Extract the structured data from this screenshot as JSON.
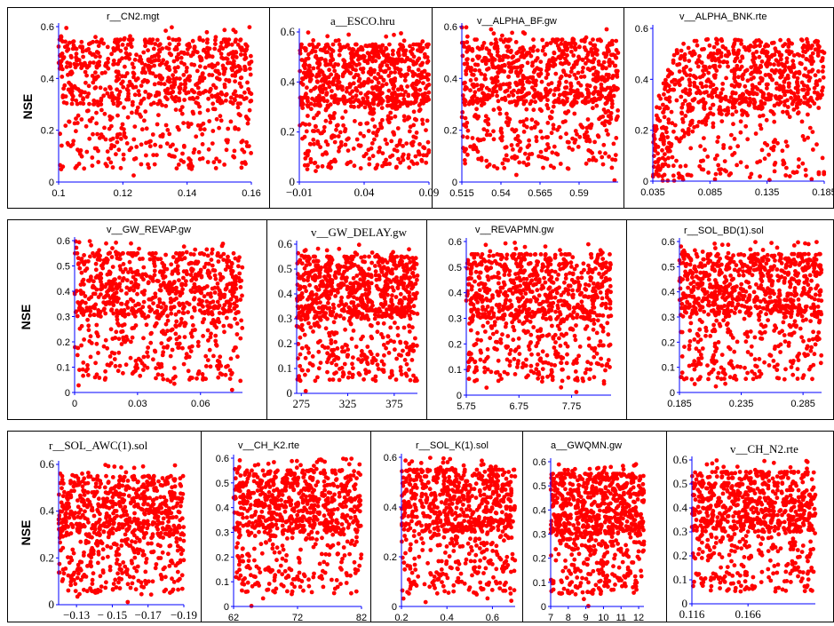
{
  "ylabel": "NSE",
  "point_color": "#ff0000",
  "axis_color": "#0000ff",
  "chart_data": [
    {
      "type": "scatter",
      "title": "r__CN2.mgt",
      "ylabel": "NSE",
      "xlim": [
        0.1,
        0.16
      ],
      "ylim": [
        0,
        0.6
      ],
      "xticks": [
        "0.1",
        "0.12",
        "0.14",
        "0.16"
      ],
      "xtick_values": [
        0.1,
        0.12,
        0.14,
        0.16
      ],
      "yticks": [
        "0",
        "0.2",
        "0.4",
        "0.6"
      ],
      "ytick_values": [
        0,
        0.2,
        0.4,
        0.6
      ],
      "pattern": "band",
      "density": 1.0
    },
    {
      "type": "scatter",
      "title": "a__ESCO.hru",
      "ylabel": "",
      "xlim": [
        -0.01,
        0.09
      ],
      "ylim": [
        0,
        0.6
      ],
      "xticks": [
        "−0.01",
        "0.04",
        "0.09"
      ],
      "xtick_values": [
        -0.01,
        0.04,
        0.09
      ],
      "yticks": [
        "0",
        "0.2",
        "0.4",
        "0.6"
      ],
      "ytick_values": [
        0,
        0.2,
        0.4,
        0.6
      ],
      "pattern": "band",
      "density": 1.0
    },
    {
      "type": "scatter",
      "title": "v__ALPHA_BF.gw",
      "ylabel": "",
      "xlim": [
        0.515,
        0.615
      ],
      "ylim": [
        0,
        0.6
      ],
      "xticks": [
        "0.515",
        "0.54",
        "0.565",
        "0.59"
      ],
      "xtick_values": [
        0.515,
        0.54,
        0.565,
        0.59
      ],
      "yticks": [
        "0",
        "0.2",
        "0.4",
        "0.6"
      ],
      "ytick_values": [
        0,
        0.2,
        0.4,
        0.6
      ],
      "pattern": "band",
      "density": 1.0
    },
    {
      "type": "scatter",
      "title": "v__ALPHA_BNK.rte",
      "ylabel": "",
      "xlim": [
        0.035,
        0.185
      ],
      "ylim": [
        0,
        0.6
      ],
      "xticks": [
        "0.035",
        "0.085",
        "0.135",
        "0.185"
      ],
      "xtick_values": [
        0.035,
        0.085,
        0.135,
        0.185
      ],
      "yticks": [
        "0",
        "0.2",
        "0.4",
        "0.6"
      ],
      "ytick_values": [
        0,
        0.2,
        0.4,
        0.6
      ],
      "pattern": "curve",
      "density": 1.0
    },
    {
      "type": "scatter",
      "title": "v__GW_REVAP.gw",
      "ylabel": "NSE",
      "xlim": [
        0,
        0.08
      ],
      "ylim": [
        0,
        0.6
      ],
      "xticks": [
        "0",
        "0.03",
        "0.06"
      ],
      "xtick_values": [
        0,
        0.03,
        0.06
      ],
      "yticks": [
        "0",
        "0.1",
        "0.2",
        "0.3",
        "0.4",
        "0.5",
        "0.6"
      ],
      "ytick_values": [
        0,
        0.1,
        0.2,
        0.3,
        0.4,
        0.5,
        0.6
      ],
      "pattern": "band",
      "density": 1.0
    },
    {
      "type": "scatter",
      "title": "v__GW_DELAY.gw",
      "ylabel": "",
      "xlim": [
        270,
        400
      ],
      "ylim": [
        0,
        0.6
      ],
      "xticks": [
        "275",
        "325",
        "375"
      ],
      "xtick_values": [
        275,
        325,
        375
      ],
      "yticks": [
        "0",
        "0.1",
        "0.2",
        "0.3",
        "0.4",
        "0.5",
        "0.6"
      ],
      "ytick_values": [
        0,
        0.1,
        0.2,
        0.3,
        0.4,
        0.5,
        0.6
      ],
      "pattern": "band",
      "density": 1.0
    },
    {
      "type": "scatter",
      "title": "v__REVAPMN.gw",
      "ylabel": "",
      "xlim": [
        5.75,
        8.5
      ],
      "ylim": [
        0,
        0.6
      ],
      "xticks": [
        "5.75",
        "6.75",
        "7.75"
      ],
      "xtick_values": [
        5.75,
        6.75,
        7.75
      ],
      "yticks": [
        "0",
        "0.1",
        "0.2",
        "0.3",
        "0.4",
        "0.5",
        "0.6"
      ],
      "ytick_values": [
        0,
        0.1,
        0.2,
        0.3,
        0.4,
        0.5,
        0.6
      ],
      "pattern": "band",
      "density": 1.0
    },
    {
      "type": "scatter",
      "title": "r__SOL_BD(1).sol",
      "ylabel": "",
      "xlim": [
        0.185,
        0.3
      ],
      "ylim": [
        0,
        0.6
      ],
      "xticks": [
        "0.185",
        "0.235",
        "0.285"
      ],
      "xtick_values": [
        0.185,
        0.235,
        0.285
      ],
      "yticks": [
        "0",
        "0.1",
        "0.2",
        "0.3",
        "0.4",
        "0.5",
        "0.6"
      ],
      "ytick_values": [
        0,
        0.1,
        0.2,
        0.3,
        0.4,
        0.5,
        0.6
      ],
      "pattern": "band",
      "density": 1.0
    },
    {
      "type": "scatter",
      "title": "r__SOL_AWC(1).sol",
      "ylabel": "NSE",
      "xlim": [
        -0.12,
        -0.19
      ],
      "ylim": [
        0,
        0.6
      ],
      "xticks": [
        "−0.13",
        "− 0.15",
        "−0.17",
        "−0.19"
      ],
      "xtick_values": [
        -0.13,
        -0.15,
        -0.17,
        -0.19
      ],
      "yticks": [
        "0",
        "0.2",
        "0.4",
        "0.6"
      ],
      "ytick_values": [
        0,
        0.2,
        0.4,
        0.6
      ],
      "pattern": "band",
      "density": 0.9
    },
    {
      "type": "scatter",
      "title": "v__CH_K2.rte",
      "ylabel": "",
      "xlim": [
        62,
        82
      ],
      "ylim": [
        0,
        0.6
      ],
      "xticks": [
        "62",
        "72",
        "82"
      ],
      "xtick_values": [
        62,
        72,
        82
      ],
      "yticks": [
        "0",
        "0.1",
        "0.2",
        "0.3",
        "0.4",
        "0.5",
        "0.6"
      ],
      "ytick_values": [
        0,
        0.1,
        0.2,
        0.3,
        0.4,
        0.5,
        0.6
      ],
      "pattern": "band",
      "density": 0.9
    },
    {
      "type": "scatter",
      "title": "r__SOL_K(1).sol",
      "ylabel": "",
      "xlim": [
        0.2,
        0.7
      ],
      "ylim": [
        0,
        0.6
      ],
      "xticks": [
        "0.2",
        "0.4",
        "0.6"
      ],
      "xtick_values": [
        0.2,
        0.4,
        0.6
      ],
      "yticks": [
        "0",
        "0.2",
        "0.4",
        "0.6"
      ],
      "ytick_values": [
        0,
        0.2,
        0.4,
        0.6
      ],
      "pattern": "band",
      "density": 0.9
    },
    {
      "type": "scatter",
      "title": "a__GWQMN.gw",
      "ylabel": "",
      "xlim": [
        7,
        12.3
      ],
      "ylim": [
        0,
        0.6
      ],
      "xticks": [
        "7",
        "8",
        "9",
        "10",
        "11",
        "12"
      ],
      "xtick_values": [
        7,
        8,
        9,
        10,
        11,
        12
      ],
      "yticks": [
        "0",
        "0.1",
        "0.2",
        "0.3",
        "0.4",
        "0.5",
        "0.6"
      ],
      "ytick_values": [
        0,
        0.1,
        0.2,
        0.3,
        0.4,
        0.5,
        0.6
      ],
      "pattern": "band",
      "density": 0.9
    },
    {
      "type": "scatter",
      "title": "v__CH_N2.rte",
      "ylabel": "",
      "xlim": [
        0.116,
        0.226
      ],
      "ylim": [
        0,
        0.6
      ],
      "xticks": [
        "0.116",
        "0.166"
      ],
      "xtick_values": [
        0.116,
        0.166
      ],
      "yticks": [
        "0",
        "0.1",
        "0.2",
        "0.3",
        "0.4",
        "0.5",
        "0.6"
      ],
      "ytick_values": [
        0,
        0.1,
        0.2,
        0.3,
        0.4,
        0.5,
        0.6
      ],
      "pattern": "band",
      "density": 0.9
    }
  ]
}
